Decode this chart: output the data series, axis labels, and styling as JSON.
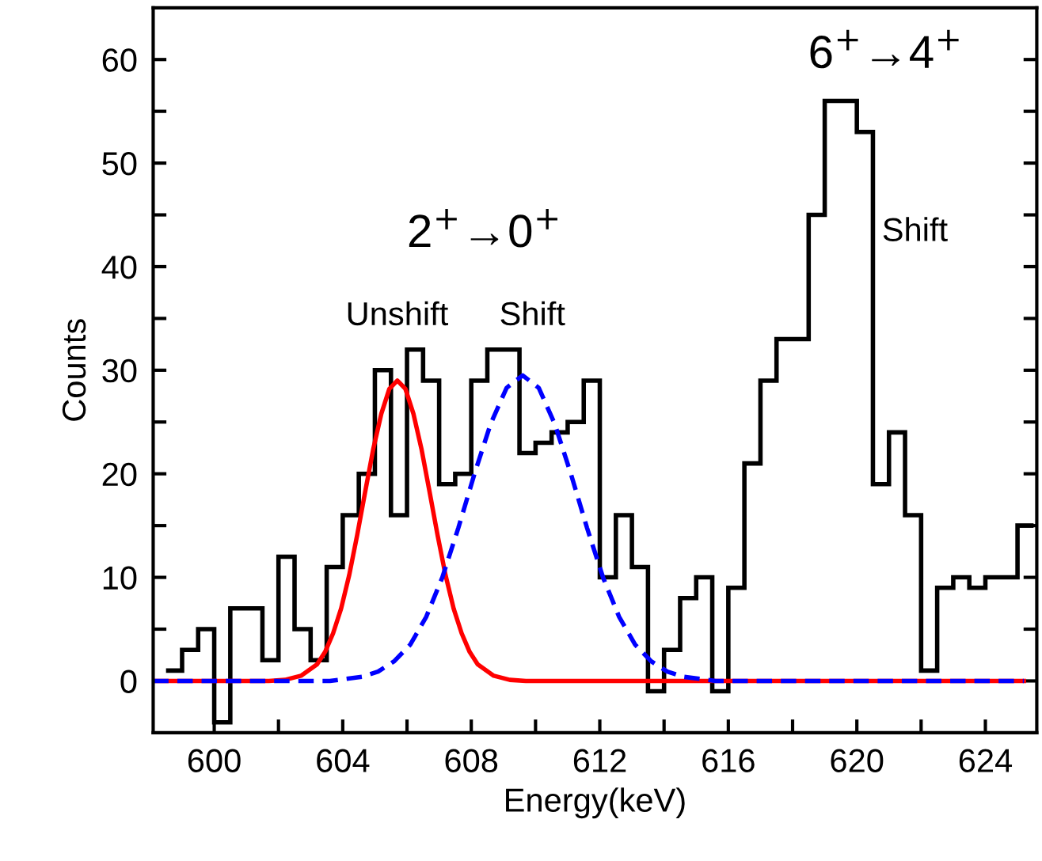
{
  "chart_data": {
    "type": "histogram",
    "xlabel": "Energy(keV)",
    "ylabel": "Counts",
    "xlim": [
      598.1,
      625.6
    ],
    "ylim": [
      -5,
      65
    ],
    "xticks": [
      600,
      {
        "value": 602,
        "label": null
      },
      604,
      {
        "value": 606,
        "label": null
      },
      608,
      {
        "value": 610,
        "label": null
      },
      612,
      {
        "value": 614,
        "label": null
      },
      616,
      {
        "value": 618,
        "label": null
      },
      620,
      {
        "value": 622,
        "label": null
      },
      624
    ],
    "yticks": [
      0,
      {
        "value": 5,
        "label": null
      },
      10,
      {
        "value": 15,
        "label": null
      },
      20,
      {
        "value": 25,
        "label": null
      },
      30,
      {
        "value": 35,
        "label": null
      },
      40,
      {
        "value": 45,
        "label": null
      },
      50,
      {
        "value": 55,
        "label": null
      },
      60
    ],
    "grid": false,
    "legend": false,
    "series": [
      {
        "color": "#000000",
        "bins": [
          598.5,
          599,
          599.5,
          600,
          600.5,
          601,
          601.5,
          602,
          602.5,
          603,
          603.5,
          604,
          604.5,
          605,
          605.5,
          606,
          606.5,
          607,
          607.5,
          608,
          608.5,
          609,
          609.5,
          610,
          610.5,
          611,
          611.5,
          612,
          612.5,
          613,
          613.5,
          614,
          614.5,
          615,
          615.5,
          616,
          616.5,
          617,
          617.5,
          618,
          618.5,
          619,
          619.5,
          620,
          620.5,
          621,
          621.5,
          622,
          622.5,
          623,
          623.5,
          624,
          624.5,
          625,
          625.5
        ],
        "values": [
          1,
          3,
          5,
          -4,
          7,
          7,
          2,
          12,
          5,
          2,
          11,
          16,
          20,
          30,
          16,
          32,
          29,
          19,
          20,
          29,
          32,
          32,
          22,
          23,
          24,
          25,
          29,
          10,
          16,
          11,
          -1,
          3,
          8,
          10,
          -1,
          9,
          21,
          29,
          33,
          33,
          45,
          56,
          56,
          53,
          19,
          24,
          16,
          1,
          9,
          10,
          9,
          10,
          10,
          15
        ]
      },
      {
        "type": "line",
        "color": "#ff0000",
        "line_style": "solid",
        "x": [
          598.1,
          601.7,
          602.2,
          602.7,
          603.2,
          603.45,
          603.7,
          603.95,
          604.2,
          604.45,
          604.7,
          604.95,
          605.2,
          605.45,
          605.7,
          605.95,
          606.2,
          606.45,
          606.7,
          606.95,
          607.2,
          607.45,
          607.7,
          607.95,
          608.2,
          608.7,
          609.2,
          609.7,
          625.2
        ],
        "values": [
          0,
          0,
          0.1,
          0.5,
          1.6,
          2.8,
          4.6,
          7.0,
          10.2,
          14.1,
          18.3,
          22.4,
          25.8,
          28.2,
          29,
          28.2,
          25.8,
          22.4,
          18.3,
          14.1,
          10.2,
          7.0,
          4.6,
          2.8,
          1.6,
          0.5,
          0.1,
          0,
          0
        ]
      },
      {
        "type": "line",
        "color": "#0000ff",
        "line_style": "dashed",
        "x": [
          598.1,
          603.6,
          604.1,
          604.6,
          605.1,
          605.6,
          606.1,
          606.6,
          607.1,
          607.6,
          608.1,
          608.6,
          609.1,
          609.6,
          610.1,
          610.6,
          611.1,
          611.6,
          612.1,
          612.6,
          613.1,
          613.6,
          614.1,
          614.6,
          615.1,
          615.6,
          625.2
        ],
        "values": [
          0,
          0,
          0.2,
          0.4,
          0.9,
          1.9,
          3.5,
          6.2,
          10.0,
          14.8,
          20.0,
          24.8,
          28.3,
          29.5,
          28.3,
          24.8,
          20.0,
          14.8,
          10.0,
          6.2,
          3.5,
          1.9,
          0.9,
          0.4,
          0.2,
          0,
          0
        ]
      }
    ],
    "annotations": [
      "2$^{+}$→0$^{+}$",
      "Unshift",
      "Shift",
      "6$^{+}$→4$^{+}$",
      "Shift"
    ]
  }
}
